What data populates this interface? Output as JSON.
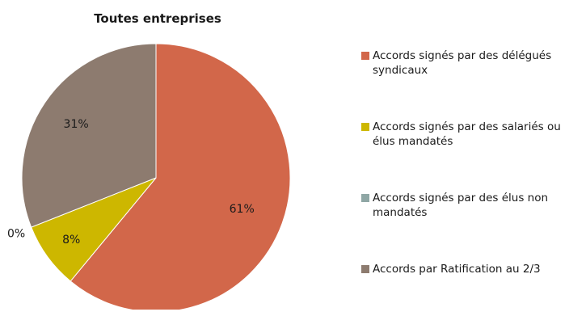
{
  "chart_data": {
    "type": "pie",
    "title": "Toutes entreprises",
    "slices": [
      {
        "label": "Accords signés par des délégués syndicaux",
        "value": 61,
        "display": "61%",
        "color": "#d2674a"
      },
      {
        "label": "Accords signés par des salariés ou élus mandatés",
        "value": 8,
        "display": "8%",
        "color": "#cdb700"
      },
      {
        "label": "Accords signés par des élus non mandatés",
        "value": 0,
        "display": "0%",
        "color": "#8fa7a5"
      },
      {
        "label": "Accords par Ratification au 2/3",
        "value": 31,
        "display": "31%",
        "color": "#8d7b6f"
      }
    ],
    "legend_position": "right"
  }
}
